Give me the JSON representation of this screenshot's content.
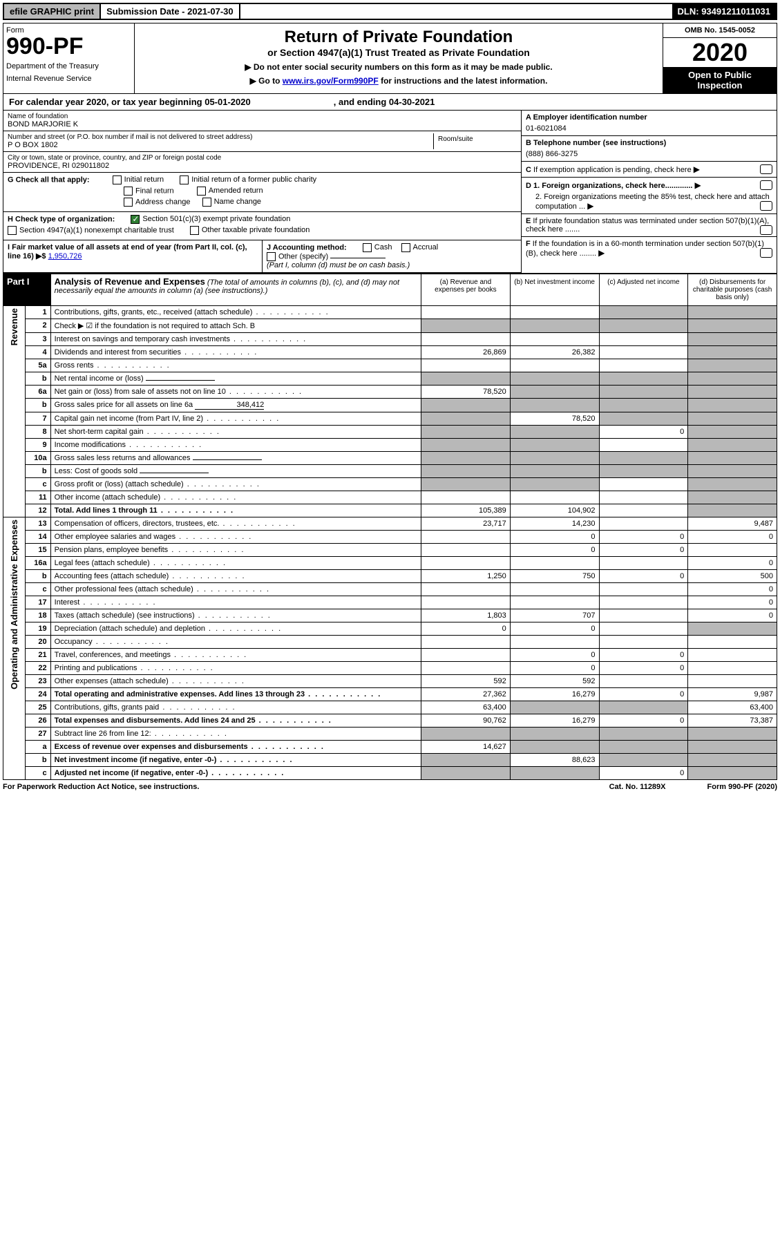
{
  "top": {
    "efile": "efile GRAPHIC print",
    "subdate_lbl": "Submission Date - ",
    "subdate": "2021-07-30",
    "dln_lbl": "DLN: ",
    "dln": "93491211011031"
  },
  "hdr": {
    "form_lbl": "Form",
    "form_num": "990-PF",
    "dept": "Department of the Treasury",
    "irs": "Internal Revenue Service",
    "title": "Return of Private Foundation",
    "sub": "or Section 4947(a)(1) Trust Treated as Private Foundation",
    "note1": "▶ Do not enter social security numbers on this form as it may be made public.",
    "note2": "▶ Go to ",
    "link": "www.irs.gov/Form990PF",
    "note3": " for instructions and the latest information.",
    "omb": "OMB No. 1545-0052",
    "year": "2020",
    "otp": "Open to Public Inspection"
  },
  "cal": {
    "txt": "For calendar year 2020, or tax year beginning 05-01-2020",
    "end": ", and ending 04-30-2021"
  },
  "info": {
    "name_lbl": "Name of foundation",
    "name": "BOND MARJORIE K",
    "addr_lbl": "Number and street (or P.O. box number if mail is not delivered to street address)",
    "addr": "P O BOX 1802",
    "room_lbl": "Room/suite",
    "city_lbl": "City or town, state or province, country, and ZIP or foreign postal code",
    "city": "PROVIDENCE, RI  029011802",
    "ein_lbl": "A Employer identification number",
    "ein": "01-6021084",
    "tel_lbl": "B Telephone number (see instructions)",
    "tel": "(888) 866-3275",
    "c_lbl": "C If exemption application is pending, check here",
    "d1": "D 1. Foreign organizations, check here.............",
    "d2": "2. Foreign organizations meeting the 85% test, check here and attach computation ...",
    "e_lbl": "E If private foundation status was terminated under section 507(b)(1)(A), check here .......",
    "f_lbl": "F If the foundation is in a 60-month termination under section 507(b)(1)(B), check here ........"
  },
  "g": {
    "lbl": "G Check all that apply:",
    "opts": [
      "Initial return",
      "Initial return of a former public charity",
      "Final return",
      "Amended return",
      "Address change",
      "Name change"
    ]
  },
  "h": {
    "lbl": "H Check type of organization:",
    "o1": "Section 501(c)(3) exempt private foundation",
    "o2": "Section 4947(a)(1) nonexempt charitable trust",
    "o3": "Other taxable private foundation"
  },
  "i": {
    "lbl": "I Fair market value of all assets at end of year (from Part II, col. (c), line 16) ▶$",
    "amt": "1,950,726"
  },
  "j": {
    "lbl": "J Accounting method:",
    "c": "Cash",
    "a": "Accrual",
    "o": "Other (specify)",
    "note": "(Part I, column (d) must be on cash basis.)"
  },
  "part1": {
    "tag": "Part I",
    "title": "Analysis of Revenue and Expenses",
    "note": "(The total of amounts in columns (b), (c), and (d) may not necessarily equal the amounts in column (a) (see instructions).)",
    "cols": [
      "(a) Revenue and expenses per books",
      "(b) Net investment income",
      "(c) Adjusted net income",
      "(d) Disbursements for charitable purposes (cash basis only)"
    ]
  },
  "sec": {
    "rev": "Revenue",
    "oae": "Operating and Administrative Expenses"
  },
  "rows": [
    {
      "n": "1",
      "d": "Contributions, gifts, grants, etc., received (attach schedule)",
      "a": "",
      "b": "",
      "c": "s",
      "e": "s"
    },
    {
      "n": "2",
      "d": "Check ▶ ☑ if the foundation is not required to attach Sch. B",
      "a": "s",
      "b": "s",
      "c": "s",
      "e": "s",
      "dotsOff": true
    },
    {
      "n": "3",
      "d": "Interest on savings and temporary cash investments",
      "a": "",
      "b": "",
      "c": "",
      "e": "s"
    },
    {
      "n": "4",
      "d": "Dividends and interest from securities",
      "a": "26,869",
      "b": "26,382",
      "c": "",
      "e": "s"
    },
    {
      "n": "5a",
      "d": "Gross rents",
      "a": "",
      "b": "",
      "c": "",
      "e": "s"
    },
    {
      "n": "b",
      "d": "Net rental income or (loss)",
      "a": "s",
      "b": "s",
      "c": "s",
      "e": "s",
      "inline": true
    },
    {
      "n": "6a",
      "d": "Net gain or (loss) from sale of assets not on line 10",
      "a": "78,520",
      "b": "s",
      "c": "s",
      "e": "s"
    },
    {
      "n": "b",
      "d": "Gross sales price for all assets on line 6a",
      "a": "s",
      "b": "s",
      "c": "s",
      "e": "s",
      "inline": true,
      "inlineVal": "348,412"
    },
    {
      "n": "7",
      "d": "Capital gain net income (from Part IV, line 2)",
      "a": "s",
      "b": "78,520",
      "c": "s",
      "e": "s"
    },
    {
      "n": "8",
      "d": "Net short-term capital gain",
      "a": "s",
      "b": "s",
      "c": "0",
      "e": "s"
    },
    {
      "n": "9",
      "d": "Income modifications",
      "a": "s",
      "b": "s",
      "c": "",
      "e": "s"
    },
    {
      "n": "10a",
      "d": "Gross sales less returns and allowances",
      "a": "s",
      "b": "s",
      "c": "s",
      "e": "s",
      "inline": true
    },
    {
      "n": "b",
      "d": "Less: Cost of goods sold",
      "a": "s",
      "b": "s",
      "c": "s",
      "e": "s",
      "inline": true
    },
    {
      "n": "c",
      "d": "Gross profit or (loss) (attach schedule)",
      "a": "s",
      "b": "s",
      "c": "",
      "e": "s"
    },
    {
      "n": "11",
      "d": "Other income (attach schedule)",
      "a": "",
      "b": "",
      "c": "",
      "e": "s"
    },
    {
      "n": "12",
      "d": "Total. Add lines 1 through 11",
      "a": "105,389",
      "b": "104,902",
      "c": "",
      "e": "s",
      "bold": true
    },
    {
      "n": "13",
      "d": "Compensation of officers, directors, trustees, etc.",
      "a": "23,717",
      "b": "14,230",
      "c": "",
      "e": "9,487"
    },
    {
      "n": "14",
      "d": "Other employee salaries and wages",
      "a": "",
      "b": "0",
      "c": "0",
      "e": "0"
    },
    {
      "n": "15",
      "d": "Pension plans, employee benefits",
      "a": "",
      "b": "0",
      "c": "0",
      "e": ""
    },
    {
      "n": "16a",
      "d": "Legal fees (attach schedule)",
      "a": "",
      "b": "",
      "c": "",
      "e": "0"
    },
    {
      "n": "b",
      "d": "Accounting fees (attach schedule)",
      "a": "1,250",
      "b": "750",
      "c": "0",
      "e": "500"
    },
    {
      "n": "c",
      "d": "Other professional fees (attach schedule)",
      "a": "",
      "b": "",
      "c": "",
      "e": "0"
    },
    {
      "n": "17",
      "d": "Interest",
      "a": "",
      "b": "",
      "c": "",
      "e": "0"
    },
    {
      "n": "18",
      "d": "Taxes (attach schedule) (see instructions)",
      "a": "1,803",
      "b": "707",
      "c": "",
      "e": "0"
    },
    {
      "n": "19",
      "d": "Depreciation (attach schedule) and depletion",
      "a": "0",
      "b": "0",
      "c": "",
      "e": "s"
    },
    {
      "n": "20",
      "d": "Occupancy",
      "a": "",
      "b": "",
      "c": "",
      "e": ""
    },
    {
      "n": "21",
      "d": "Travel, conferences, and meetings",
      "a": "",
      "b": "0",
      "c": "0",
      "e": ""
    },
    {
      "n": "22",
      "d": "Printing and publications",
      "a": "",
      "b": "0",
      "c": "0",
      "e": ""
    },
    {
      "n": "23",
      "d": "Other expenses (attach schedule)",
      "a": "592",
      "b": "592",
      "c": "",
      "e": ""
    },
    {
      "n": "24",
      "d": "Total operating and administrative expenses. Add lines 13 through 23",
      "a": "27,362",
      "b": "16,279",
      "c": "0",
      "e": "9,987",
      "bold": true
    },
    {
      "n": "25",
      "d": "Contributions, gifts, grants paid",
      "a": "63,400",
      "b": "s",
      "c": "s",
      "e": "63,400"
    },
    {
      "n": "26",
      "d": "Total expenses and disbursements. Add lines 24 and 25",
      "a": "90,762",
      "b": "16,279",
      "c": "0",
      "e": "73,387",
      "bold": true
    },
    {
      "n": "27",
      "d": "Subtract line 26 from line 12:",
      "a": "s",
      "b": "s",
      "c": "s",
      "e": "s"
    },
    {
      "n": "a",
      "d": "Excess of revenue over expenses and disbursements",
      "a": "14,627",
      "b": "s",
      "c": "s",
      "e": "s",
      "bold": true
    },
    {
      "n": "b",
      "d": "Net investment income (if negative, enter -0-)",
      "a": "s",
      "b": "88,623",
      "c": "s",
      "e": "s",
      "bold": true
    },
    {
      "n": "c",
      "d": "Adjusted net income (if negative, enter -0-)",
      "a": "s",
      "b": "s",
      "c": "0",
      "e": "s",
      "bold": true
    }
  ],
  "footer": {
    "l": "For Paperwork Reduction Act Notice, see instructions.",
    "m": "Cat. No. 11289X",
    "r": "Form 990-PF (2020)"
  }
}
